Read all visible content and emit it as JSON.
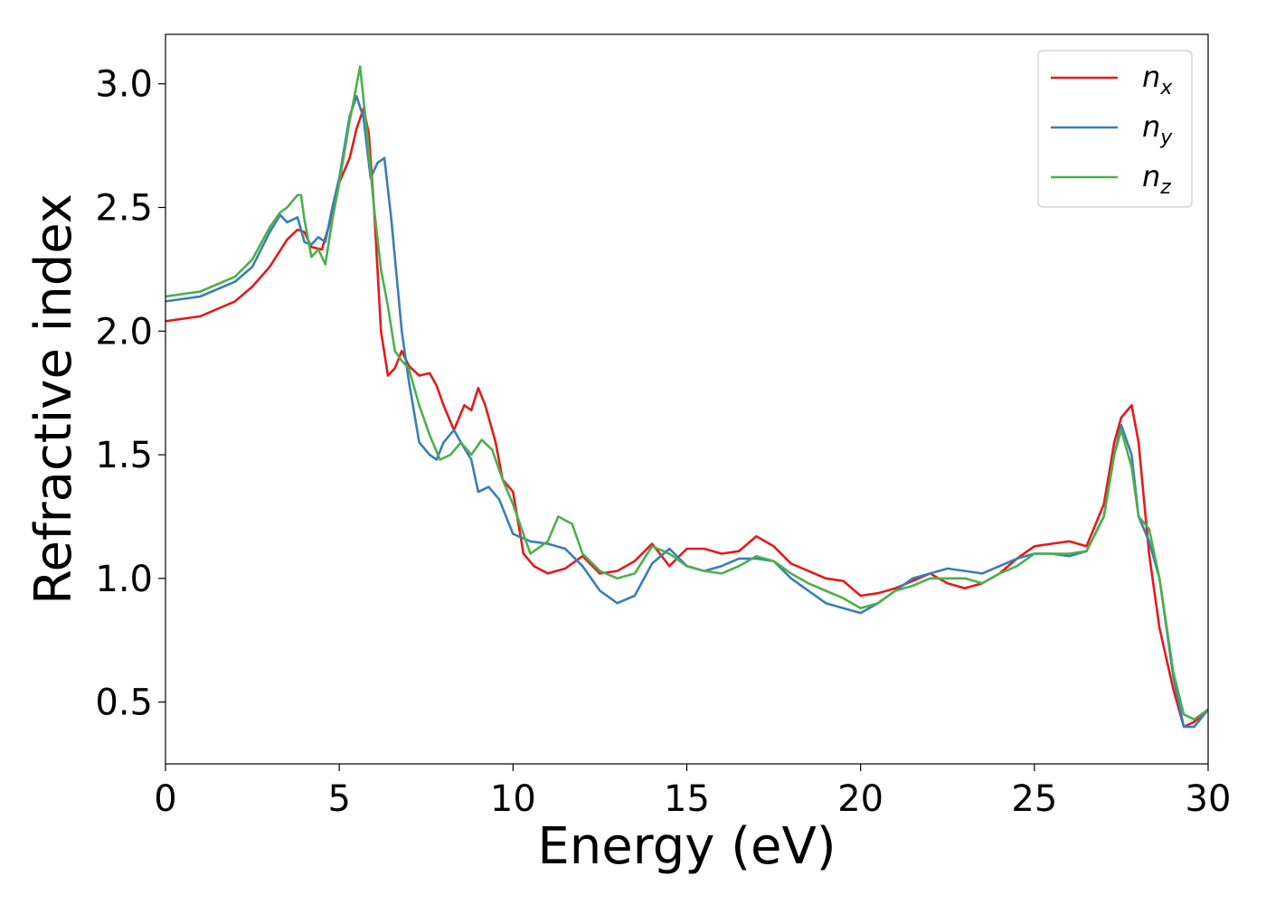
{
  "chart_data": {
    "type": "line",
    "xlabel": "Energy (eV)",
    "ylabel": "Refractive index",
    "xlim": [
      0,
      30
    ],
    "ylim": [
      0.25,
      3.2
    ],
    "xticks": [
      "0",
      "5",
      "10",
      "15",
      "20",
      "25",
      "30"
    ],
    "yticks": [
      "0.5",
      "1.0",
      "1.5",
      "2.0",
      "2.5",
      "3.0"
    ],
    "grid": false,
    "legend_position": "top-right",
    "series": [
      {
        "name": "n",
        "subscript": "x",
        "color": "#e41a1c",
        "x": [
          0,
          1,
          2,
          2.5,
          3,
          3.5,
          3.8,
          4.0,
          4.2,
          4.5,
          4.8,
          5.0,
          5.3,
          5.5,
          5.7,
          5.85,
          6.0,
          6.2,
          6.4,
          6.6,
          6.8,
          7.0,
          7.3,
          7.6,
          7.8,
          8.0,
          8.3,
          8.6,
          8.8,
          9.0,
          9.2,
          9.5,
          9.7,
          10.0,
          10.3,
          10.6,
          11.0,
          11.5,
          12.0,
          12.5,
          13.0,
          13.5,
          14.0,
          14.5,
          15.0,
          15.5,
          16.0,
          16.5,
          17.0,
          17.5,
          18.0,
          18.5,
          19.0,
          19.5,
          20.0,
          20.5,
          21.0,
          21.5,
          22.0,
          22.5,
          23.0,
          23.5,
          24.0,
          24.5,
          25.0,
          25.5,
          26.0,
          26.5,
          27.0,
          27.3,
          27.5,
          27.8,
          28.0,
          28.3,
          28.6,
          29.0,
          29.3,
          29.6,
          30.0
        ],
        "y": [
          2.04,
          2.06,
          2.12,
          2.18,
          2.26,
          2.37,
          2.41,
          2.4,
          2.34,
          2.33,
          2.47,
          2.6,
          2.7,
          2.82,
          2.9,
          2.8,
          2.5,
          2.0,
          1.82,
          1.85,
          1.92,
          1.86,
          1.82,
          1.83,
          1.78,
          1.7,
          1.6,
          1.7,
          1.68,
          1.77,
          1.7,
          1.55,
          1.4,
          1.35,
          1.1,
          1.05,
          1.02,
          1.04,
          1.09,
          1.02,
          1.03,
          1.07,
          1.14,
          1.05,
          1.12,
          1.12,
          1.1,
          1.11,
          1.17,
          1.13,
          1.06,
          1.03,
          1.0,
          0.99,
          0.93,
          0.94,
          0.96,
          0.99,
          1.02,
          0.98,
          0.96,
          0.98,
          1.02,
          1.08,
          1.13,
          1.14,
          1.15,
          1.13,
          1.3,
          1.55,
          1.65,
          1.7,
          1.55,
          1.1,
          0.8,
          0.55,
          0.4,
          0.42,
          0.47
        ]
      },
      {
        "name": "n",
        "subscript": "y",
        "color": "#377eb8",
        "x": [
          0,
          1,
          2,
          2.5,
          3,
          3.3,
          3.5,
          3.8,
          4.0,
          4.2,
          4.4,
          4.6,
          4.8,
          5.0,
          5.3,
          5.5,
          5.7,
          5.9,
          6.1,
          6.3,
          6.5,
          6.8,
          7.0,
          7.3,
          7.6,
          7.8,
          8.0,
          8.3,
          8.5,
          8.8,
          9.0,
          9.3,
          9.6,
          10.0,
          10.5,
          11.0,
          11.5,
          12.0,
          12.5,
          13.0,
          13.5,
          14.0,
          14.5,
          15.0,
          15.5,
          16.0,
          16.5,
          17.0,
          17.5,
          18.0,
          18.5,
          19.0,
          19.5,
          20.0,
          20.5,
          21.0,
          21.5,
          22.0,
          22.5,
          23.0,
          23.5,
          24.0,
          24.5,
          25.0,
          25.5,
          26.0,
          26.5,
          27.0,
          27.3,
          27.5,
          27.8,
          28.0,
          28.3,
          28.6,
          29.0,
          29.3,
          29.6,
          30.0
        ],
        "y": [
          2.12,
          2.14,
          2.2,
          2.26,
          2.4,
          2.47,
          2.44,
          2.46,
          2.36,
          2.35,
          2.38,
          2.36,
          2.5,
          2.62,
          2.87,
          2.95,
          2.86,
          2.62,
          2.68,
          2.7,
          2.45,
          2.0,
          1.8,
          1.55,
          1.5,
          1.48,
          1.55,
          1.6,
          1.55,
          1.48,
          1.35,
          1.37,
          1.32,
          1.18,
          1.15,
          1.14,
          1.12,
          1.05,
          0.95,
          0.9,
          0.93,
          1.06,
          1.12,
          1.05,
          1.03,
          1.05,
          1.08,
          1.08,
          1.07,
          1.0,
          0.95,
          0.9,
          0.88,
          0.86,
          0.9,
          0.95,
          1.0,
          1.02,
          1.04,
          1.03,
          1.02,
          1.05,
          1.08,
          1.1,
          1.1,
          1.09,
          1.11,
          1.25,
          1.5,
          1.62,
          1.5,
          1.25,
          1.15,
          1.0,
          0.6,
          0.4,
          0.4,
          0.47
        ]
      },
      {
        "name": "n",
        "subscript": "z",
        "color": "#4daf4a",
        "x": [
          0,
          1,
          2,
          2.5,
          3,
          3.3,
          3.5,
          3.8,
          3.9,
          4.0,
          4.2,
          4.4,
          4.6,
          4.8,
          5.0,
          5.3,
          5.6,
          5.8,
          6.0,
          6.2,
          6.4,
          6.6,
          6.8,
          7.0,
          7.3,
          7.6,
          7.9,
          8.2,
          8.5,
          8.8,
          9.1,
          9.4,
          9.7,
          10.0,
          10.5,
          11.0,
          11.3,
          11.7,
          12.0,
          12.5,
          13.0,
          13.5,
          14.0,
          14.5,
          15.0,
          15.5,
          16.0,
          16.5,
          17.0,
          17.5,
          18.0,
          18.5,
          19.0,
          19.5,
          20.0,
          20.5,
          21.0,
          21.5,
          22.0,
          22.5,
          23.0,
          23.5,
          24.0,
          24.5,
          25.0,
          25.5,
          26.0,
          26.5,
          27.0,
          27.3,
          27.5,
          27.8,
          28.0,
          28.3,
          28.6,
          29.0,
          29.3,
          29.6,
          30.0
        ],
        "y": [
          2.14,
          2.16,
          2.22,
          2.29,
          2.42,
          2.48,
          2.5,
          2.55,
          2.55,
          2.45,
          2.3,
          2.33,
          2.27,
          2.45,
          2.6,
          2.85,
          3.07,
          2.8,
          2.5,
          2.25,
          2.1,
          1.92,
          1.88,
          1.85,
          1.7,
          1.58,
          1.48,
          1.5,
          1.55,
          1.5,
          1.56,
          1.52,
          1.4,
          1.3,
          1.1,
          1.15,
          1.25,
          1.22,
          1.1,
          1.03,
          1.0,
          1.02,
          1.13,
          1.1,
          1.05,
          1.03,
          1.02,
          1.05,
          1.09,
          1.07,
          1.02,
          0.98,
          0.95,
          0.92,
          0.88,
          0.9,
          0.95,
          0.97,
          1.0,
          1.0,
          1.0,
          0.98,
          1.02,
          1.05,
          1.1,
          1.1,
          1.1,
          1.11,
          1.25,
          1.5,
          1.6,
          1.45,
          1.25,
          1.2,
          1.0,
          0.62,
          0.45,
          0.43,
          0.47
        ]
      }
    ]
  }
}
